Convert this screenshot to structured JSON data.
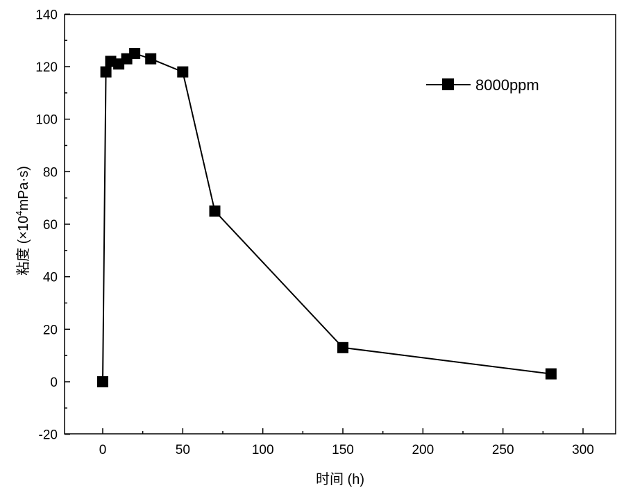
{
  "chart_data": {
    "type": "line",
    "title": "",
    "xlabel": "时间 (h)",
    "ylabel_main": "粘度 (×10",
    "ylabel_sup": "4",
    "ylabel_tail": "mPa·s)",
    "xlim": [
      -25,
      325
    ],
    "ylim": [
      -20,
      140
    ],
    "xticks": [
      0,
      50,
      100,
      150,
      200,
      250,
      300
    ],
    "yticks": [
      -20,
      0,
      20,
      40,
      60,
      80,
      100,
      120,
      140
    ],
    "grid": false,
    "legend_position": "top-right",
    "series": [
      {
        "name": "8000ppm",
        "marker": "square",
        "color": "#000000",
        "x": [
          0,
          2,
          5,
          10,
          15,
          20,
          30,
          50,
          70,
          150,
          280
        ],
        "y": [
          0,
          118,
          122,
          121,
          123,
          125,
          123,
          118,
          65,
          13,
          3
        ]
      }
    ]
  }
}
